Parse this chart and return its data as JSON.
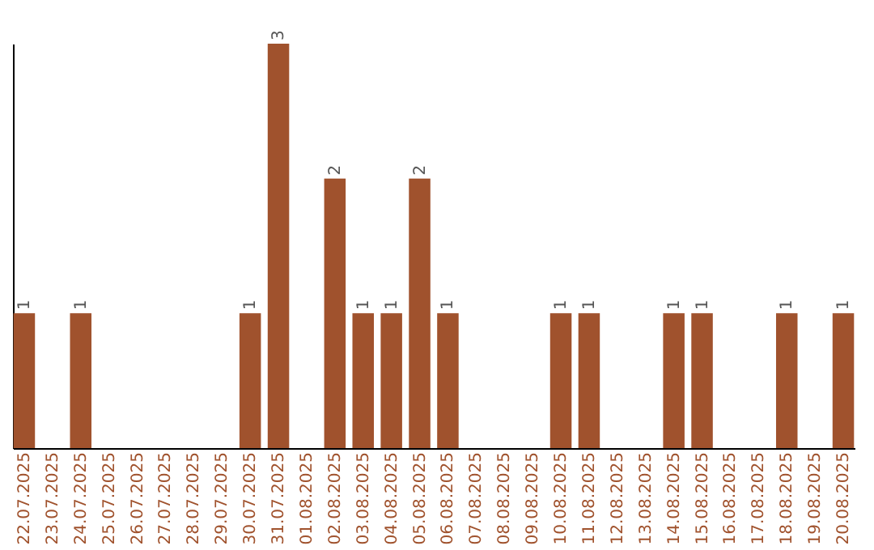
{
  "chart_data": {
    "type": "bar",
    "categories": [
      "22.07.2025",
      "23.07.2025",
      "24.07.2025",
      "25.07.2025",
      "26.07.2025",
      "27.07.2025",
      "28.07.2025",
      "29.07.2025",
      "30.07.2025",
      "31.07.2025",
      "01.08.2025",
      "02.08.2025",
      "03.08.2025",
      "04.08.2025",
      "05.08.2025",
      "06.08.2025",
      "07.08.2025",
      "08.08.2025",
      "09.08.2025",
      "10.08.2025",
      "11.08.2025",
      "12.08.2025",
      "13.08.2025",
      "14.08.2025",
      "15.08.2025",
      "16.08.2025",
      "17.08.2025",
      "18.08.2025",
      "19.08.2025",
      "20.08.2025"
    ],
    "values": [
      1,
      0,
      1,
      0,
      0,
      0,
      0,
      0,
      1,
      3,
      0,
      2,
      1,
      1,
      2,
      1,
      0,
      0,
      0,
      1,
      1,
      0,
      0,
      1,
      1,
      0,
      0,
      1,
      0,
      1
    ],
    "value_labels": [
      "1",
      null,
      "1",
      null,
      null,
      null,
      null,
      null,
      "1",
      "3",
      null,
      "2",
      "1",
      "1",
      "2",
      "1",
      null,
      null,
      null,
      "1",
      "1",
      null,
      null,
      "1",
      "1",
      null,
      null,
      "1",
      null,
      "1"
    ],
    "color": "#a0522d",
    "grid": false,
    "tick_labels": "x"
  }
}
